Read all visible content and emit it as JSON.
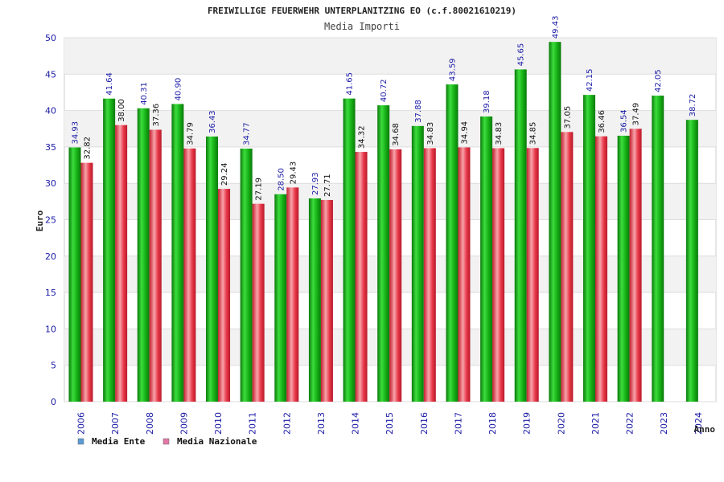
{
  "chart_data": {
    "type": "bar",
    "title": "FREIWILLIGE FEUERWEHR UNTERPLANITZING EO (c.f.80021610219)",
    "subtitle": "Media Importi",
    "xlabel": "Anno",
    "ylabel": "Euro",
    "ylim": [
      0,
      50
    ],
    "yticks": [
      0,
      5,
      10,
      15,
      20,
      25,
      30,
      35,
      40,
      45,
      50
    ],
    "grid": true,
    "legend_position": "bottom-left",
    "categories": [
      "2006",
      "2007",
      "2008",
      "2009",
      "2010",
      "2011",
      "2012",
      "2013",
      "2014",
      "2015",
      "2016",
      "2017",
      "2018",
      "2019",
      "2020",
      "2021",
      "2022",
      "2023",
      "2024"
    ],
    "series": [
      {
        "name": "Media Ente",
        "legend_color": "#5b9bd5",
        "bar_color": "#1fb31f",
        "label_color": "#1a1aa6",
        "values": [
          34.93,
          41.64,
          40.31,
          40.9,
          36.43,
          34.77,
          28.5,
          27.93,
          41.65,
          40.72,
          37.88,
          43.59,
          39.18,
          45.65,
          49.43,
          42.15,
          36.54,
          42.05,
          38.72
        ],
        "labels": [
          "34.93",
          "41.64",
          "40.31",
          "40.90",
          "36.43",
          "34.77",
          "28.50",
          "27.93",
          "41.65",
          "40.72",
          "37.88",
          "43.59",
          "39.18",
          "45.65",
          "49.43",
          "42.15",
          "36.54",
          "42.05",
          "38.72"
        ]
      },
      {
        "name": "Media Nazionale",
        "legend_color": "#e377a7",
        "bar_color": "#e8394a",
        "label_color": "#111111",
        "values": [
          32.82,
          38.0,
          37.36,
          34.79,
          29.24,
          27.19,
          29.43,
          27.71,
          34.32,
          34.68,
          34.83,
          34.94,
          34.83,
          34.85,
          37.05,
          36.46,
          37.49,
          null,
          null
        ],
        "labels": [
          "32.82",
          "38.00",
          "37.36",
          "34.79",
          "29.24",
          "27.19",
          "29.43",
          "27.71",
          "34.32",
          "34.68",
          "34.83",
          "34.94",
          "34.83",
          "34.85",
          "37.05",
          "36.46",
          "37.49",
          null,
          null
        ]
      }
    ]
  }
}
